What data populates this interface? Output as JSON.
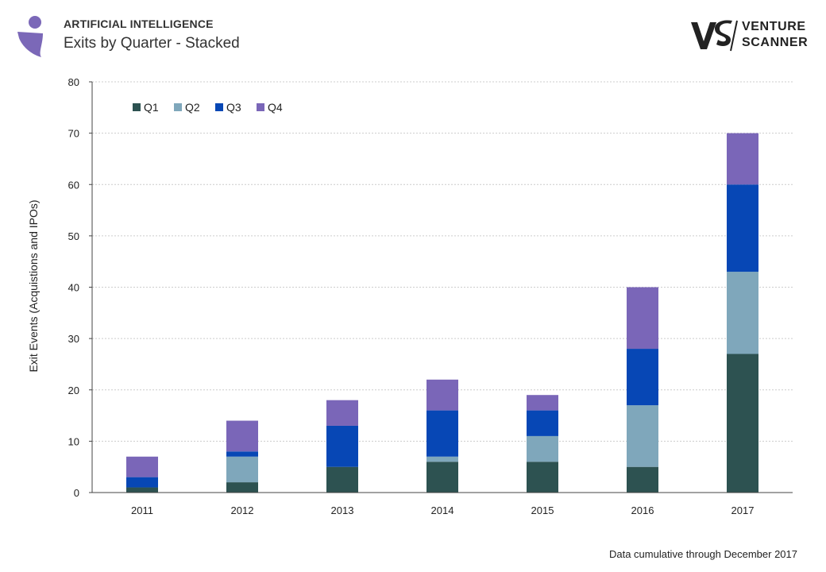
{
  "header": {
    "category": "ARTIFICIAL INTELLIGENCE",
    "title": "Exits by Quarter - Stacked",
    "brand_mark": "VS",
    "brand_line1": "VENTURE",
    "brand_line2": "SCANNER"
  },
  "footer": {
    "note": "Data cumulative through December 2017"
  },
  "colors": {
    "logo": "#7b68b8",
    "Q1": "#2d5251",
    "Q2": "#7fa7bb",
    "Q3": "#0747b5",
    "Q4": "#7a66b8",
    "grid": "#cccccc",
    "axis": "#444444"
  },
  "chart_data": {
    "type": "bar",
    "stacked": true,
    "title": "Exits by Quarter - Stacked",
    "xlabel": "",
    "ylabel": "Exit Events (Acquistions and IPOs)",
    "ylim": [
      0,
      80
    ],
    "yticks": [
      0,
      10,
      20,
      30,
      40,
      50,
      60,
      70,
      80
    ],
    "grid": true,
    "legend_position": "top-left",
    "categories": [
      "2011",
      "2012",
      "2013",
      "2014",
      "2015",
      "2016",
      "2017"
    ],
    "series": [
      {
        "name": "Q1",
        "values": [
          1,
          2,
          5,
          6,
          6,
          5,
          27
        ]
      },
      {
        "name": "Q2",
        "values": [
          0,
          5,
          0,
          1,
          5,
          12,
          16
        ]
      },
      {
        "name": "Q3",
        "values": [
          2,
          1,
          8,
          9,
          5,
          11,
          17
        ]
      },
      {
        "name": "Q4",
        "values": [
          4,
          6,
          5,
          6,
          3,
          12,
          10
        ]
      }
    ]
  }
}
